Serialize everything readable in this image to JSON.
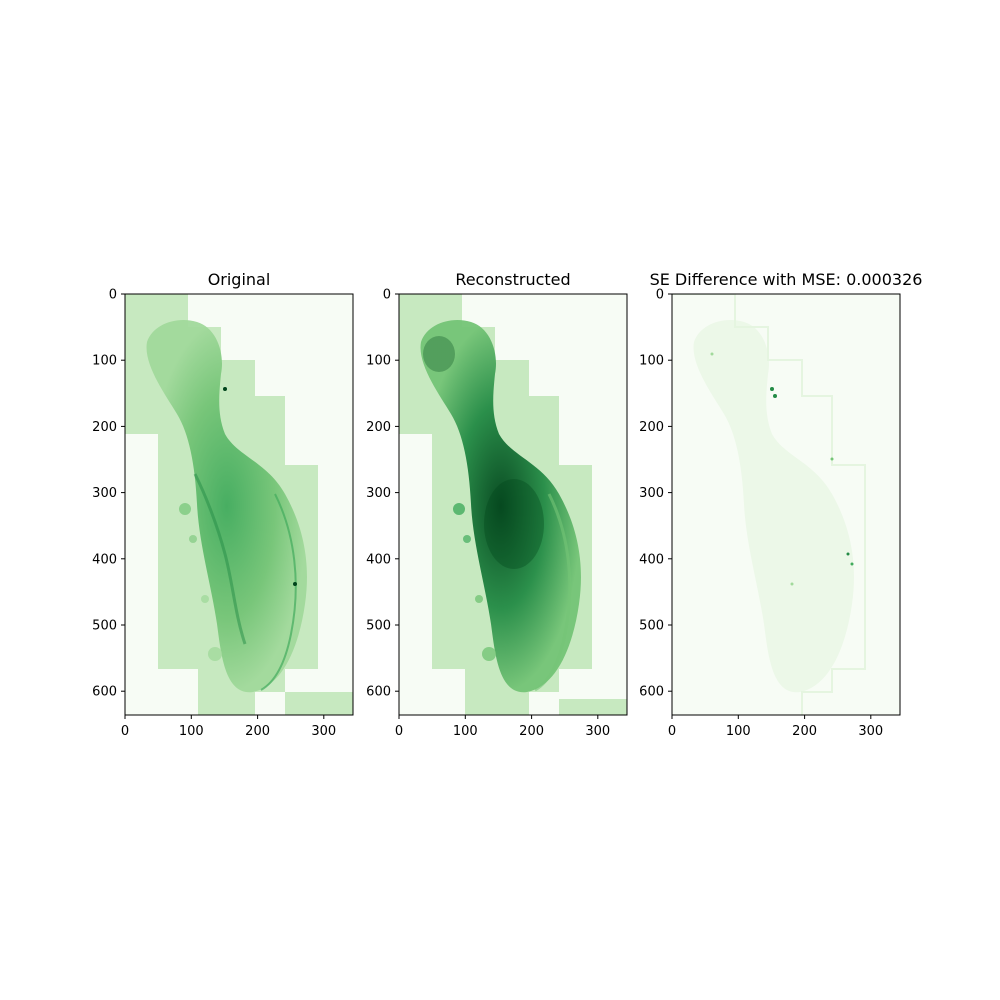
{
  "figure": {
    "panels": [
      {
        "title": "Original",
        "x_ticks": [
          "0",
          "100",
          "200",
          "300"
        ],
        "y_ticks": [
          "0",
          "100",
          "200",
          "300",
          "400",
          "500",
          "600"
        ],
        "colormap": "Greens",
        "intensity": "medium"
      },
      {
        "title": "Reconstructed",
        "x_ticks": [
          "0",
          "100",
          "200",
          "300"
        ],
        "y_ticks": [
          "0",
          "100",
          "200",
          "300",
          "400",
          "500",
          "600"
        ],
        "colormap": "Greens",
        "intensity": "dark"
      },
      {
        "title": "SE Difference with MSE: 0.000326",
        "x_ticks": [
          "0",
          "100",
          "200",
          "300"
        ],
        "y_ticks": [
          "0",
          "100",
          "200",
          "300",
          "400",
          "500",
          "600"
        ],
        "colormap": "Greens",
        "intensity": "faint"
      }
    ],
    "axes_extent": {
      "x_max": 344,
      "y_max": 636
    },
    "colors": {
      "background_light": "#f7fcf5",
      "tile_light": "#c7e9c0",
      "tissue_mid": "#74c476",
      "tissue_dark": "#238b45",
      "tissue_darkest": "#00441b"
    }
  }
}
